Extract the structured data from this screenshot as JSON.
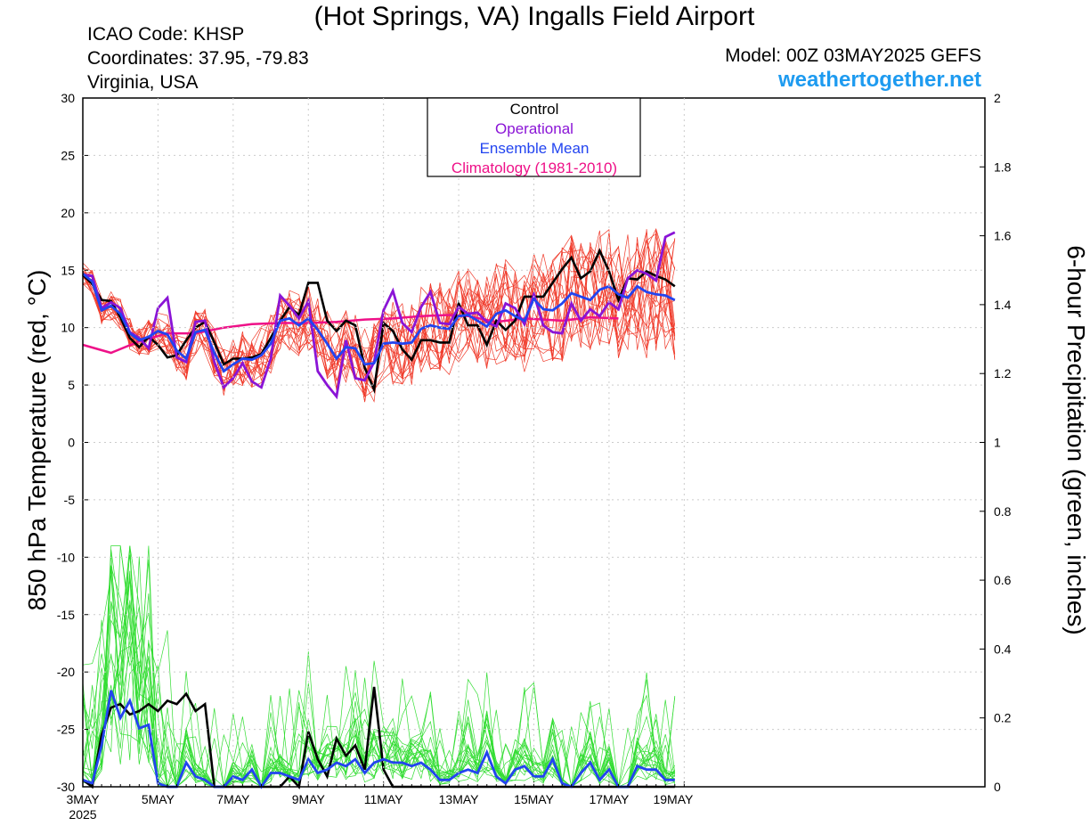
{
  "header": {
    "title": "(Hot Springs, VA) Ingalls Field Airport",
    "icao": "ICAO Code: KHSP",
    "coordinates": "Coordinates: 37.95, -79.83",
    "region": "Virginia, USA",
    "model": "Model: 00Z 03MAY2025 GEFS",
    "website": "weathertogether.net"
  },
  "chart_data": {
    "type": "line",
    "ylabel": "850 hPa Temperature (red, °C)",
    "y2label": "6-hour Precipitation (green, inches)",
    "ylim": [
      -30,
      30
    ],
    "y2lim": [
      0,
      2
    ],
    "xlim": [
      0,
      96
    ],
    "x_unit": "6-hour steps from 00Z 03MAY2025",
    "yticks": [
      "30",
      "25",
      "20",
      "15",
      "10",
      "5",
      "0",
      "-5",
      "-10",
      "-15",
      "-20",
      "-25",
      "-30"
    ],
    "y2ticks": [
      "2",
      "1.8",
      "1.6",
      "1.4",
      "1.2",
      "1",
      "0.8",
      "0.6",
      "0.4",
      "0.2",
      "0"
    ],
    "xticks": [
      {
        "x": 0,
        "label": "3MAY",
        "sub": "2025"
      },
      {
        "x": 8,
        "label": "5MAY"
      },
      {
        "x": 16,
        "label": "7MAY"
      },
      {
        "x": 24,
        "label": "9MAY"
      },
      {
        "x": 32,
        "label": "11MAY"
      },
      {
        "x": 40,
        "label": "13MAY"
      },
      {
        "x": 48,
        "label": "15MAY"
      },
      {
        "x": 56,
        "label": "17MAY"
      },
      {
        "x": 64,
        "label": "19MAY"
      }
    ],
    "legend": {
      "position": "top-center",
      "entries": [
        {
          "label": "Control",
          "color": "#000000"
        },
        {
          "label": "Operational",
          "color": "#8a14d6"
        },
        {
          "label": "Ensemble Mean",
          "color": "#2244f0"
        },
        {
          "label": "Climatology (1981-2010)",
          "color": "#ee1188"
        }
      ]
    },
    "colors": {
      "members_temp": "#f03a2a",
      "members_precip": "#33dd33",
      "control": "#000000",
      "operational": "#8a14d6",
      "mean": "#2244f0",
      "climatology": "#ee1188"
    },
    "temperature": {
      "control": [
        14.6,
        13.8,
        12.4,
        12.3,
        10.9,
        9.1,
        8.3,
        9.2,
        8.5,
        7.4,
        7.6,
        8.9,
        10.0,
        10.5,
        8.7,
        6.8,
        7.3,
        7.3,
        7.4,
        7.7,
        9.1,
        10.6,
        11.8,
        11.1,
        13.9,
        13.9,
        10.6,
        9.7,
        10.6,
        10.2,
        6.5,
        4.6,
        10.4,
        9.7,
        8.1,
        7.2,
        8.9,
        8.9,
        8.7,
        8.7,
        12.1,
        10.2,
        10.2,
        8.5,
        10.6,
        9.8,
        10.6,
        12.7,
        12.7,
        12.7,
        13.9,
        15.1,
        16.1,
        14.3,
        14.9,
        16.7,
        14.9,
        12.4,
        14.3,
        14.2,
        14.9,
        14.5,
        14.2,
        13.6
      ],
      "operational": [
        14.6,
        14.5,
        11.7,
        12.2,
        11.7,
        9.6,
        9.1,
        8.2,
        11.7,
        12.6,
        7.4,
        7.0,
        10.5,
        10.6,
        7.0,
        4.8,
        5.6,
        6.9,
        5.3,
        4.8,
        7.3,
        12.8,
        11.9,
        10.8,
        12.3,
        6.2,
        5.0,
        4.0,
        8.9,
        5.6,
        5.4,
        7.0,
        11.5,
        13.2,
        10.4,
        9.6,
        11.8,
        13.1,
        10.4,
        10.3,
        11.8,
        11.2,
        11.3,
        10.5,
        10.1,
        12.1,
        11.7,
        10.3,
        12.9,
        10.2,
        9.6,
        9.5,
        12.1,
        10.6,
        11.6,
        11.0,
        12.2,
        11.6,
        14.3,
        15.0,
        14.7,
        14.1,
        17.9,
        18.3
      ],
      "mean": [
        14.7,
        14.0,
        11.5,
        11.9,
        11.2,
        9.5,
        8.9,
        9.2,
        9.7,
        9.4,
        8.0,
        7.3,
        9.6,
        9.8,
        7.8,
        6.2,
        6.8,
        7.3,
        7.2,
        7.6,
        8.6,
        10.6,
        10.8,
        10.2,
        10.8,
        9.8,
        8.6,
        7.3,
        8.3,
        8.2,
        6.8,
        6.9,
        8.6,
        8.7,
        8.6,
        8.7,
        9.9,
        10.2,
        10.0,
        9.9,
        11.0,
        11.1,
        10.6,
        10.1,
        11.2,
        11.5,
        11.0,
        10.6,
        12.5,
        11.6,
        11.5,
        12.1,
        13.0,
        12.7,
        12.4,
        13.3,
        13.6,
        12.9,
        12.6,
        13.6,
        13.1,
        12.9,
        12.8,
        12.4
      ]
    },
    "climatology": [
      [
        0,
        8.5
      ],
      [
        3,
        7.8
      ],
      [
        6,
        8.8
      ],
      [
        9,
        9.5
      ],
      [
        12,
        9.5
      ],
      [
        15,
        10.0
      ],
      [
        18,
        10.3
      ],
      [
        21,
        10.4
      ],
      [
        24,
        10.4
      ],
      [
        27,
        10.5
      ],
      [
        30,
        10.7
      ],
      [
        33,
        10.8
      ],
      [
        36,
        11.0
      ],
      [
        39,
        11.1
      ],
      [
        41,
        11.0
      ],
      [
        44,
        10.5
      ],
      [
        47,
        10.8
      ],
      [
        51,
        10.6
      ],
      [
        54,
        10.9
      ],
      [
        57,
        10.8
      ]
    ],
    "precipitation": {
      "control": [
        0.02,
        0.0,
        0.15,
        0.23,
        0.24,
        0.21,
        0.22,
        0.24,
        0.22,
        0.25,
        0.24,
        0.27,
        0.22,
        0.24,
        0.0,
        0.0,
        0.0,
        0.0,
        0.0,
        0.0,
        0.0,
        0.0,
        0.03,
        0.0,
        0.16,
        0.08,
        0.03,
        0.14,
        0.09,
        0.12,
        0.05,
        0.29,
        0.05,
        0.0,
        0.0,
        0.0,
        0.0,
        0.0,
        0.0,
        0.0,
        0.0,
        0.0,
        0.0,
        0.0,
        0.0,
        0.0,
        0.0,
        0.0,
        0.0,
        0.0,
        0.0,
        0.0,
        0.0,
        0.0,
        0.0,
        0.0,
        0.0,
        0.0,
        0.0,
        0.0,
        0.0,
        0.0,
        0.0,
        0.0
      ],
      "mean": [
        0.02,
        0.01,
        0.12,
        0.28,
        0.2,
        0.25,
        0.17,
        0.18,
        0.01,
        0.0,
        0.0,
        0.07,
        0.03,
        0.02,
        0.0,
        0.0,
        0.03,
        0.02,
        0.05,
        0.0,
        0.04,
        0.04,
        0.03,
        0.02,
        0.08,
        0.04,
        0.05,
        0.07,
        0.06,
        0.08,
        0.04,
        0.07,
        0.08,
        0.07,
        0.07,
        0.06,
        0.07,
        0.05,
        0.02,
        0.02,
        0.04,
        0.05,
        0.04,
        0.1,
        0.03,
        0.01,
        0.05,
        0.06,
        0.03,
        0.03,
        0.08,
        0.01,
        0.0,
        0.04,
        0.07,
        0.02,
        0.05,
        0.0,
        0.0,
        0.06,
        0.05,
        0.05,
        0.02,
        0.02
      ]
    }
  }
}
